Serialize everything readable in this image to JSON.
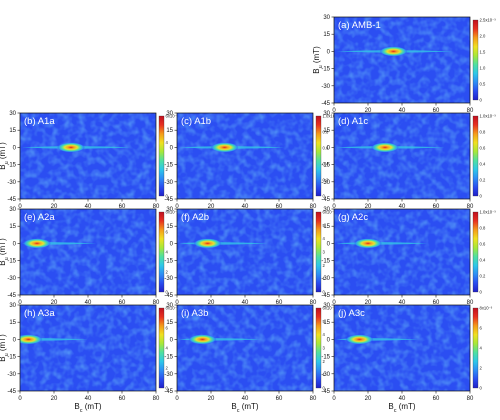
{
  "figure": {
    "colormap": [
      "#2020c8",
      "#2a4cf0",
      "#2e8ef5",
      "#2ec8e8",
      "#4fe0a0",
      "#a8e838",
      "#f0e020",
      "#f59a1a",
      "#e83020",
      "#c01020"
    ]
  },
  "chart_data": [
    {
      "type": "heatmap",
      "label": "(a) AMB-1",
      "xlabel": "",
      "ylabel": "B_u (mT)",
      "xlim": [
        0,
        80
      ],
      "ylim": [
        -45,
        30
      ],
      "xticks": [
        "0",
        "20",
        "40",
        "60",
        "80"
      ],
      "yticks": [
        "30",
        "15",
        "0",
        "-15",
        "-30",
        "-45"
      ],
      "colorbar_ticks": [
        "0",
        "0.5",
        "1.0",
        "1.5",
        "2.0",
        "2.5x10⁻³"
      ],
      "peak": {
        "x": 35,
        "y": 0
      }
    },
    {
      "type": "heatmap",
      "label": "(b) A1a",
      "xlabel": "",
      "ylabel": "B_u (mT)",
      "xlim": [
        0,
        80
      ],
      "ylim": [
        -45,
        30
      ],
      "xticks": [
        "0",
        "20",
        "40",
        "60",
        "80"
      ],
      "yticks": [
        "30",
        "15",
        "0",
        "-15",
        "-30",
        "-45"
      ],
      "colorbar_ticks": [
        "0",
        "2",
        "4",
        "6x10⁻³"
      ],
      "peak": {
        "x": 30,
        "y": 0
      }
    },
    {
      "type": "heatmap",
      "label": "(c) A1b",
      "xlabel": "",
      "ylabel": "",
      "xlim": [
        0,
        80
      ],
      "ylim": [
        -45,
        30
      ],
      "xticks": [
        "0",
        "20",
        "40",
        "60",
        "80"
      ],
      "yticks": [
        "30",
        "15",
        "0",
        "-15",
        "-30",
        "-45"
      ],
      "colorbar_ticks": [
        "0",
        "0.2",
        "0.4",
        "0.6",
        "0.8",
        "1.0x10⁻³"
      ],
      "peak": {
        "x": 28,
        "y": 0
      }
    },
    {
      "type": "heatmap",
      "label": "(d) A1c",
      "xlabel": "",
      "ylabel": "",
      "xlim": [
        0,
        80
      ],
      "ylim": [
        -45,
        30
      ],
      "xticks": [
        "0",
        "20",
        "40",
        "60",
        "80"
      ],
      "yticks": [
        "30",
        "15",
        "0",
        "-15",
        "-30",
        "-45"
      ],
      "colorbar_ticks": [
        "0",
        "0.2",
        "0.4",
        "0.6",
        "0.8",
        "1.0x10⁻³"
      ],
      "peak": {
        "x": 30,
        "y": 0
      }
    },
    {
      "type": "heatmap",
      "label": "(e) A2a",
      "xlabel": "",
      "ylabel": "B_u (mT)",
      "xlim": [
        0,
        80
      ],
      "ylim": [
        -45,
        30
      ],
      "xticks": [
        "0",
        "20",
        "40",
        "60",
        "80"
      ],
      "yticks": [
        "30",
        "15",
        "0",
        "-15",
        "-30",
        "-45"
      ],
      "colorbar_ticks": [
        "0",
        "2",
        "4",
        "6",
        "8x10⁻³"
      ],
      "peak": {
        "x": 10,
        "y": 0
      }
    },
    {
      "type": "heatmap",
      "label": "(f) A2b",
      "xlabel": "",
      "ylabel": "",
      "xlim": [
        0,
        80
      ],
      "ylim": [
        -45,
        30
      ],
      "xticks": [
        "0",
        "20",
        "40",
        "60",
        "80"
      ],
      "yticks": [
        "30",
        "15",
        "0",
        "-15",
        "-30",
        "-45"
      ],
      "colorbar_ticks": [
        "0",
        "1",
        "2",
        "3",
        "4",
        "5",
        "6x10⁻³"
      ],
      "peak": {
        "x": 18,
        "y": 0
      }
    },
    {
      "type": "heatmap",
      "label": "(g) A2c",
      "xlabel": "",
      "ylabel": "",
      "xlim": [
        0,
        80
      ],
      "ylim": [
        -45,
        30
      ],
      "xticks": [
        "0",
        "20",
        "40",
        "60",
        "80"
      ],
      "yticks": [
        "30",
        "15",
        "0",
        "-15",
        "-30",
        "-45"
      ],
      "colorbar_ticks": [
        "0",
        "0.2",
        "0.4",
        "0.6",
        "0.8",
        "1.0x10⁻³"
      ],
      "peak": {
        "x": 20,
        "y": 0
      }
    },
    {
      "type": "heatmap",
      "label": "(h) A3a",
      "xlabel": "B_c (mT)",
      "ylabel": "B_u (mT)",
      "xlim": [
        0,
        80
      ],
      "ylim": [
        -45,
        30
      ],
      "xticks": [
        "0",
        "20",
        "40",
        "60",
        "80"
      ],
      "yticks": [
        "30",
        "15",
        "0",
        "-15",
        "-30",
        "-45"
      ],
      "colorbar_ticks": [
        "0",
        "2",
        "4",
        "6",
        "8x10⁻³"
      ],
      "peak": {
        "x": 5,
        "y": 0
      }
    },
    {
      "type": "heatmap",
      "label": "(i) A3b",
      "xlabel": "B_c (mT)",
      "ylabel": "",
      "xlim": [
        0,
        80
      ],
      "ylim": [
        -45,
        30
      ],
      "xticks": [
        "0",
        "20",
        "40",
        "60",
        "80"
      ],
      "yticks": [
        "30",
        "15",
        "0",
        "-15",
        "-30",
        "-45"
      ],
      "colorbar_ticks": [
        "0",
        "1",
        "2",
        "3",
        "4",
        "5",
        "6x10⁻³"
      ],
      "peak": {
        "x": 15,
        "y": 0
      }
    },
    {
      "type": "heatmap",
      "label": "(j) A3c",
      "xlabel": "B_c (mT)",
      "ylabel": "",
      "xlim": [
        0,
        80
      ],
      "ylim": [
        -45,
        30
      ],
      "xticks": [
        "0",
        "20",
        "40",
        "60",
        "80"
      ],
      "yticks": [
        "30",
        "15",
        "0",
        "-15",
        "-30",
        "-45"
      ],
      "colorbar_ticks": [
        "0",
        "2",
        "4",
        "6",
        "8x10⁻³"
      ],
      "peak": {
        "x": 15,
        "y": 0
      }
    }
  ]
}
